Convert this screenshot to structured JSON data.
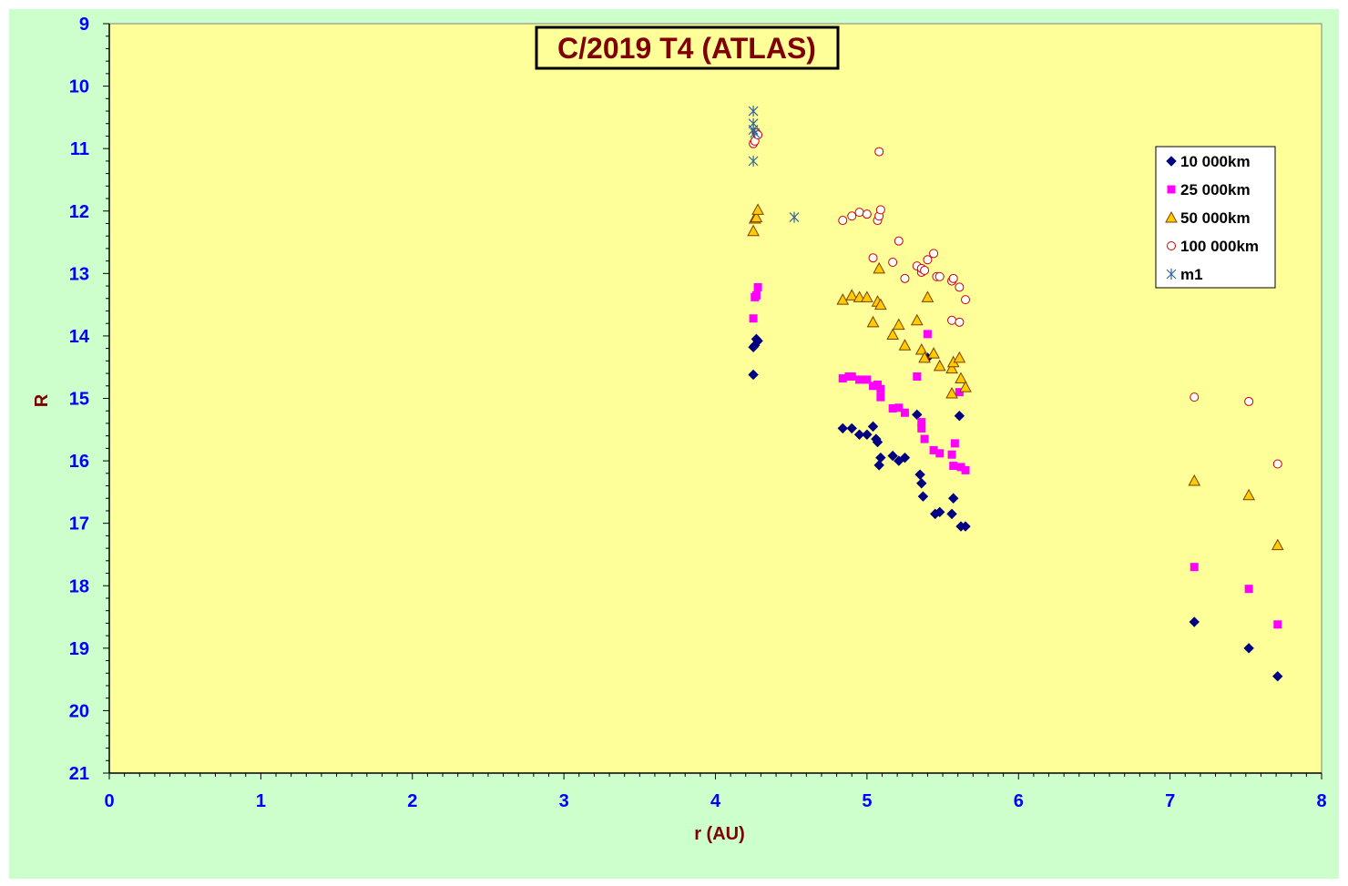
{
  "chart_data": {
    "type": "scatter",
    "title": "C/2019 T4 (ATLAS)",
    "xlabel": "r (AU)",
    "ylabel": "R",
    "xlim": [
      0,
      8
    ],
    "ylim": [
      21,
      9
    ],
    "y_inverted": true,
    "x_ticks": [
      "0",
      "1",
      "2",
      "3",
      "4",
      "5",
      "6",
      "7",
      "8"
    ],
    "y_ticks": [
      "9",
      "10",
      "11",
      "12",
      "13",
      "14",
      "15",
      "16",
      "17",
      "18",
      "19",
      "20",
      "21"
    ],
    "grid": false,
    "legend_position": "top-right",
    "colors": {
      "plot_background": "#ffff99",
      "chart_background": "#ccffcc",
      "tick_text": "#0000ff",
      "axis_label_text": "#800000"
    },
    "series": [
      {
        "name": "10 000km",
        "marker": "diamond",
        "color": "#000080",
        "points": [
          [
            4.25,
            14.62
          ],
          [
            4.25,
            14.18
          ],
          [
            4.26,
            14.15
          ],
          [
            4.27,
            14.05
          ],
          [
            4.28,
            14.08
          ],
          [
            4.84,
            15.48
          ],
          [
            4.9,
            15.48
          ],
          [
            4.95,
            15.58
          ],
          [
            5.0,
            15.58
          ],
          [
            5.04,
            15.45
          ],
          [
            5.06,
            15.65
          ],
          [
            5.07,
            15.7
          ],
          [
            5.09,
            15.95
          ],
          [
            5.08,
            16.07
          ],
          [
            5.17,
            15.92
          ],
          [
            5.21,
            16.0
          ],
          [
            5.25,
            15.95
          ],
          [
            5.33,
            15.26
          ],
          [
            5.35,
            16.22
          ],
          [
            5.36,
            16.36
          ],
          [
            5.37,
            16.57
          ],
          [
            5.4,
            14.35
          ],
          [
            5.45,
            16.85
          ],
          [
            5.48,
            16.82
          ],
          [
            5.56,
            16.85
          ],
          [
            5.57,
            16.6
          ],
          [
            5.61,
            15.28
          ],
          [
            5.62,
            17.05
          ],
          [
            5.65,
            17.05
          ],
          [
            7.16,
            18.58
          ],
          [
            7.52,
            19.0
          ],
          [
            7.71,
            19.45
          ]
        ]
      },
      {
        "name": "25 000km",
        "marker": "square",
        "color": "#ff00ff",
        "points": [
          [
            4.25,
            13.72
          ],
          [
            4.26,
            13.38
          ],
          [
            4.27,
            13.35
          ],
          [
            4.28,
            13.22
          ],
          [
            4.84,
            14.68
          ],
          [
            4.88,
            14.65
          ],
          [
            4.9,
            14.65
          ],
          [
            4.95,
            14.7
          ],
          [
            5.0,
            14.7
          ],
          [
            5.04,
            14.8
          ],
          [
            5.07,
            14.78
          ],
          [
            5.09,
            14.85
          ],
          [
            5.09,
            14.98
          ],
          [
            5.17,
            15.16
          ],
          [
            5.21,
            15.15
          ],
          [
            5.25,
            15.23
          ],
          [
            5.33,
            14.65
          ],
          [
            5.36,
            15.38
          ],
          [
            5.36,
            15.48
          ],
          [
            5.38,
            15.65
          ],
          [
            5.4,
            13.97
          ],
          [
            5.44,
            15.83
          ],
          [
            5.48,
            15.88
          ],
          [
            5.56,
            15.9
          ],
          [
            5.58,
            15.72
          ],
          [
            5.57,
            16.08
          ],
          [
            5.61,
            14.9
          ],
          [
            5.62,
            16.1
          ],
          [
            5.65,
            16.15
          ],
          [
            7.16,
            17.7
          ],
          [
            7.52,
            18.05
          ],
          [
            7.71,
            18.62
          ]
        ]
      },
      {
        "name": "50 000km",
        "marker": "triangle",
        "color": "#ffcc00",
        "points": [
          [
            4.25,
            12.32
          ],
          [
            4.26,
            12.12
          ],
          [
            4.27,
            12.1
          ],
          [
            4.28,
            11.98
          ],
          [
            4.84,
            13.42
          ],
          [
            4.9,
            13.35
          ],
          [
            4.95,
            13.38
          ],
          [
            5.0,
            13.38
          ],
          [
            5.04,
            13.78
          ],
          [
            5.07,
            13.45
          ],
          [
            5.09,
            13.5
          ],
          [
            5.08,
            12.92
          ],
          [
            5.17,
            13.98
          ],
          [
            5.21,
            13.82
          ],
          [
            5.25,
            14.15
          ],
          [
            5.33,
            13.75
          ],
          [
            5.36,
            14.22
          ],
          [
            5.38,
            14.35
          ],
          [
            5.4,
            13.38
          ],
          [
            5.44,
            14.28
          ],
          [
            5.48,
            14.48
          ],
          [
            5.56,
            14.52
          ],
          [
            5.57,
            14.42
          ],
          [
            5.56,
            14.92
          ],
          [
            5.61,
            14.35
          ],
          [
            5.62,
            14.68
          ],
          [
            5.65,
            14.82
          ],
          [
            7.16,
            16.32
          ],
          [
            7.52,
            16.55
          ],
          [
            7.71,
            17.35
          ]
        ]
      },
      {
        "name": "100 000km",
        "marker": "circle",
        "color": "#cc0000",
        "points": [
          [
            4.25,
            10.92
          ],
          [
            4.26,
            10.88
          ],
          [
            4.27,
            10.75
          ],
          [
            4.28,
            10.78
          ],
          [
            4.84,
            12.15
          ],
          [
            4.9,
            12.08
          ],
          [
            4.95,
            12.02
          ],
          [
            5.0,
            12.05
          ],
          [
            5.04,
            12.75
          ],
          [
            5.07,
            12.15
          ],
          [
            5.08,
            12.08
          ],
          [
            5.09,
            11.98
          ],
          [
            5.08,
            11.05
          ],
          [
            5.17,
            12.82
          ],
          [
            5.21,
            12.48
          ],
          [
            5.25,
            13.08
          ],
          [
            5.33,
            12.88
          ],
          [
            5.36,
            12.98
          ],
          [
            5.36,
            12.92
          ],
          [
            5.38,
            12.95
          ],
          [
            5.4,
            12.78
          ],
          [
            5.44,
            12.68
          ],
          [
            5.46,
            13.05
          ],
          [
            5.48,
            13.05
          ],
          [
            5.56,
            13.12
          ],
          [
            5.57,
            13.08
          ],
          [
            5.56,
            13.75
          ],
          [
            5.61,
            13.78
          ],
          [
            5.61,
            13.22
          ],
          [
            5.65,
            13.42
          ],
          [
            7.16,
            14.98
          ],
          [
            7.52,
            15.05
          ],
          [
            7.71,
            16.05
          ]
        ]
      },
      {
        "name": "m1",
        "marker": "asterisk",
        "color": "#336699",
        "points": [
          [
            4.25,
            10.4
          ],
          [
            4.25,
            10.6
          ],
          [
            4.25,
            10.7
          ],
          [
            4.26,
            10.75
          ],
          [
            4.25,
            11.2
          ],
          [
            4.52,
            12.1
          ]
        ]
      }
    ]
  }
}
